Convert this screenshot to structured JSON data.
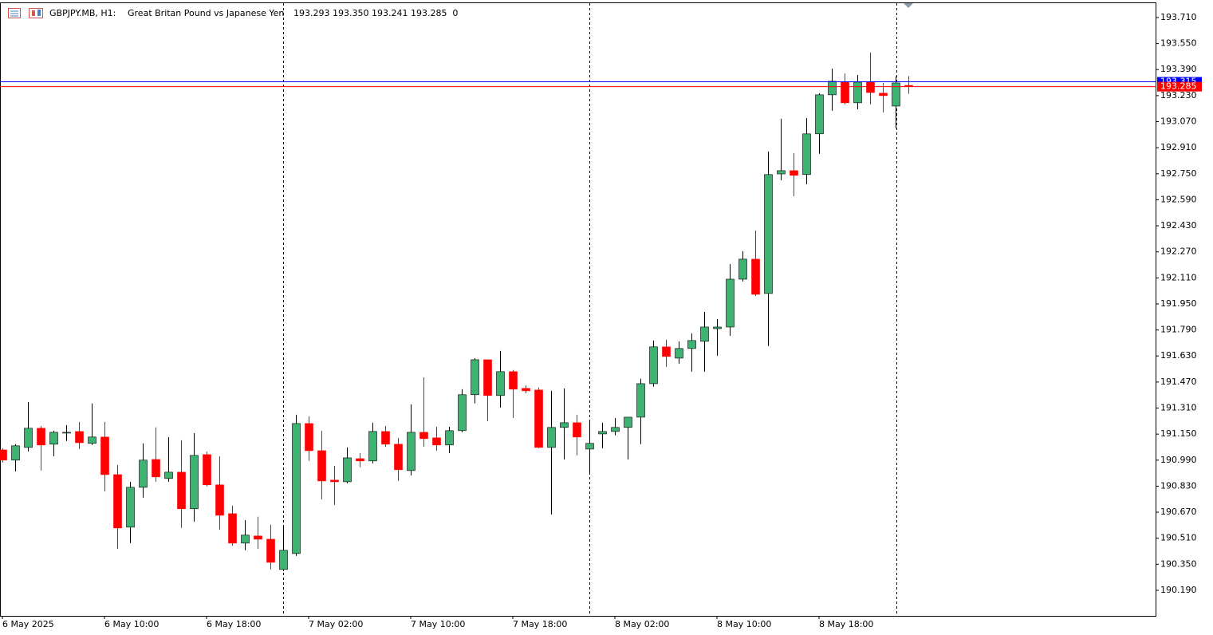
{
  "chart_data": {
    "type": "candlestick",
    "symbol": "GBPJPY.MB, H1:",
    "description": "Great Britan Pound vs Japanese Yen",
    "info": "193.293 193.350 193.241 193.285  0",
    "categories": [
      "6 May 2025",
      null,
      null,
      null,
      null,
      null,
      null,
      null,
      "6 May 10:00",
      null,
      null,
      null,
      null,
      null,
      null,
      null,
      "6 May 18:00",
      null,
      null,
      null,
      null,
      null,
      null,
      null,
      "7 May 02:00",
      null,
      null,
      null,
      null,
      null,
      null,
      null,
      "7 May 10:00",
      null,
      null,
      null,
      null,
      null,
      null,
      null,
      "7 May 18:00",
      null,
      null,
      null,
      null,
      null,
      null,
      null,
      "8 May 02:00",
      null,
      null,
      null,
      null,
      null,
      null,
      null,
      "8 May 10:00",
      null,
      null,
      null,
      null,
      null,
      null,
      null,
      "8 May 18:00",
      null,
      null,
      null,
      null,
      null,
      null,
      null
    ],
    "series": {
      "up_color": "#3cb371",
      "down_color": "#ff0000",
      "open": [
        191.053,
        190.99,
        191.068,
        191.186,
        191.088,
        191.156,
        191.166,
        191.093,
        191.132,
        190.901,
        190.578,
        190.823,
        190.994,
        190.877,
        190.916,
        190.691,
        191.024,
        190.838,
        190.661,
        190.48,
        190.524,
        190.504,
        190.318,
        190.416,
        191.215,
        191.048,
        190.867,
        190.857,
        190.999,
        190.985,
        191.166,
        191.088,
        190.926,
        191.161,
        191.127,
        191.083,
        191.171,
        191.392,
        191.607,
        191.387,
        191.534,
        191.431,
        191.421,
        191.068,
        191.191,
        191.22,
        191.058,
        191.151,
        191.166,
        191.191,
        191.254,
        191.46,
        191.686,
        191.617,
        191.676,
        191.72,
        191.798,
        191.808,
        192.102,
        192.225,
        192.014,
        192.749,
        192.769,
        192.745,
        192.995,
        193.235,
        193.313,
        193.186,
        193.313,
        193.245,
        193.166,
        193.293
      ],
      "high": [
        191.063,
        191.088,
        191.347,
        191.2,
        191.171,
        191.205,
        191.225,
        191.338,
        191.225,
        190.96,
        190.857,
        191.093,
        191.191,
        191.132,
        191.112,
        191.156,
        191.043,
        191.014,
        190.71,
        190.622,
        190.642,
        190.593,
        190.583,
        191.269,
        191.259,
        191.171,
        190.955,
        191.068,
        191.034,
        191.22,
        191.2,
        191.127,
        191.333,
        191.499,
        191.195,
        191.195,
        191.426,
        191.617,
        191.607,
        191.661,
        191.544,
        191.45,
        191.436,
        191.416,
        191.431,
        191.269,
        191.23,
        191.22,
        191.249,
        191.254,
        191.49,
        191.725,
        191.73,
        191.72,
        191.769,
        191.901,
        191.857,
        192.195,
        192.274,
        192.401,
        192.887,
        193.088,
        192.877,
        193.093,
        193.245,
        193.396,
        193.367,
        193.357,
        193.495,
        193.308,
        193.348,
        193.35
      ],
      "low": [
        190.975,
        190.921,
        191.043,
        190.926,
        191.014,
        191.107,
        191.058,
        191.083,
        190.798,
        190.445,
        190.48,
        190.759,
        190.857,
        190.857,
        190.573,
        190.612,
        190.828,
        190.563,
        190.465,
        190.436,
        190.445,
        190.318,
        190.308,
        190.401,
        190.985,
        190.749,
        190.715,
        190.847,
        190.946,
        190.97,
        191.073,
        190.862,
        190.896,
        191.073,
        191.048,
        191.034,
        191.161,
        191.338,
        191.23,
        191.313,
        191.249,
        191.401,
        191.063,
        190.656,
        190.994,
        191.019,
        190.906,
        191.063,
        191.142,
        190.994,
        191.088,
        191.441,
        191.563,
        191.583,
        191.534,
        191.534,
        191.632,
        191.754,
        192.088,
        191.999,
        191.691,
        192.71,
        192.612,
        192.686,
        192.872,
        193.137,
        193.176,
        193.146,
        193.176,
        193.127,
        193.029,
        193.241
      ],
      "close": [
        190.99,
        191.078,
        191.186,
        191.083,
        191.161,
        191.161,
        191.097,
        191.132,
        190.901,
        190.573,
        190.823,
        190.99,
        190.887,
        190.916,
        190.691,
        191.019,
        190.838,
        190.651,
        190.48,
        190.529,
        190.504,
        190.362,
        190.436,
        191.215,
        191.048,
        190.862,
        190.857,
        191.004,
        190.985,
        191.166,
        191.088,
        190.931,
        191.161,
        191.122,
        191.083,
        191.171,
        191.392,
        191.607,
        191.387,
        191.534,
        191.426,
        191.416,
        191.068,
        191.191,
        191.22,
        191.132,
        191.093,
        191.166,
        191.191,
        191.254,
        191.46,
        191.686,
        191.627,
        191.676,
        191.725,
        191.808,
        191.808,
        192.102,
        192.225,
        192.009,
        192.745,
        192.769,
        192.74,
        192.995,
        193.235,
        193.318,
        193.186,
        193.313,
        193.249,
        193.23,
        193.308,
        193.285
      ]
    },
    "price_lines": [
      {
        "value": 193.315,
        "label": "193.315",
        "color": "#0000ff"
      },
      {
        "value": 193.285,
        "label": "193.285",
        "color": "#ff0000"
      }
    ],
    "ylim": [
      190.033,
      193.803
    ],
    "yticks": [
      {
        "value": 190.19,
        "label": "190.190"
      },
      {
        "value": 190.35,
        "label": "190.350"
      },
      {
        "value": 190.51,
        "label": "190.510"
      },
      {
        "value": 190.67,
        "label": "190.670"
      },
      {
        "value": 190.83,
        "label": "190.830"
      },
      {
        "value": 190.99,
        "label": "190.990"
      },
      {
        "value": 191.15,
        "label": "191.150"
      },
      {
        "value": 191.31,
        "label": "191.310"
      },
      {
        "value": 191.47,
        "label": "191.470"
      },
      {
        "value": 191.63,
        "label": "191.630"
      },
      {
        "value": 191.79,
        "label": "191.790"
      },
      {
        "value": 191.95,
        "label": "191.950"
      },
      {
        "value": 192.11,
        "label": "192.110"
      },
      {
        "value": 192.27,
        "label": "192.270"
      },
      {
        "value": 192.43,
        "label": "192.430"
      },
      {
        "value": 192.59,
        "label": "192.590"
      },
      {
        "value": 192.75,
        "label": "192.750"
      },
      {
        "value": 192.91,
        "label": "192.910"
      },
      {
        "value": 193.07,
        "label": "193.070"
      },
      {
        "value": 193.23,
        "label": "193.230"
      },
      {
        "value": 193.39,
        "label": "193.390"
      },
      {
        "value": 193.55,
        "label": "193.550"
      },
      {
        "value": 193.71,
        "label": "193.710"
      }
    ],
    "grid": false
  }
}
